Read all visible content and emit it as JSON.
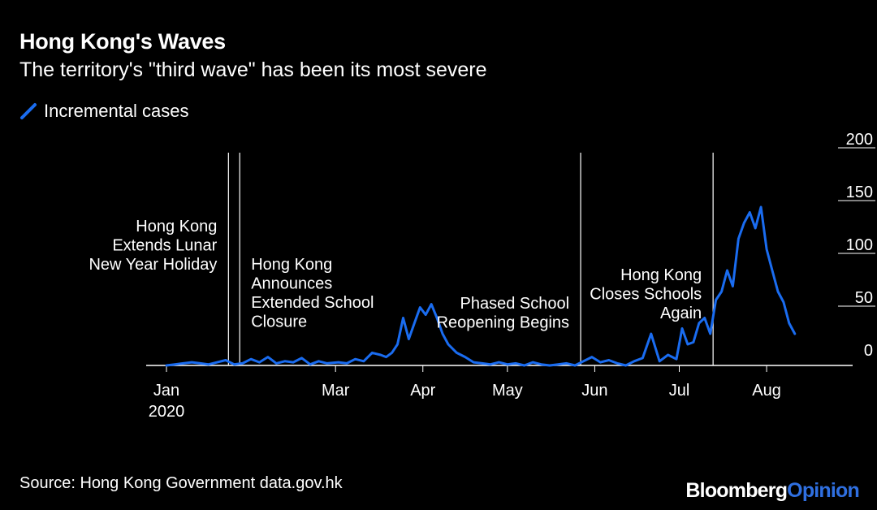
{
  "header": {
    "title": "Hong Kong's Waves",
    "subtitle": "The territory's \"third wave\" has been its most severe"
  },
  "legend": {
    "label": "Incremental cases"
  },
  "footer": {
    "source": "Source: Hong Kong Government data.gov.hk",
    "brand_part1": "Bloomberg",
    "brand_part2": "Opinion"
  },
  "colors": {
    "series": "#1a6cf0",
    "background": "#000000",
    "text": "#ffffff",
    "brand_accent": "#2f6fe0"
  },
  "chart_data": {
    "type": "line",
    "title": "Hong Kong's Waves",
    "subtitle": "The territory's \"third wave\" has been its most severe",
    "x_start_label": "Jan 2020",
    "x_tick_labels": [
      {
        "date": "2020-01-01",
        "label": "Jan",
        "sub": "2020"
      },
      {
        "date": "2020-03-01",
        "label": "Mar"
      },
      {
        "date": "2020-04-01",
        "label": "Apr"
      },
      {
        "date": "2020-05-01",
        "label": "May"
      },
      {
        "date": "2020-06-01",
        "label": "Jun"
      },
      {
        "date": "2020-07-01",
        "label": "Jul"
      },
      {
        "date": "2020-08-01",
        "label": "Aug"
      }
    ],
    "y_ticks": [
      0,
      50,
      100,
      150,
      200
    ],
    "ylim": [
      0,
      200
    ],
    "y_axis_side": "right",
    "series": [
      {
        "name": "Incremental cases",
        "color": "#1a6cf0",
        "x": [
          "2020-01-01",
          "2020-01-04",
          "2020-01-07",
          "2020-01-10",
          "2020-01-13",
          "2020-01-16",
          "2020-01-19",
          "2020-01-22",
          "2020-01-25",
          "2020-01-28",
          "2020-01-31",
          "2020-02-03",
          "2020-02-06",
          "2020-02-09",
          "2020-02-12",
          "2020-02-15",
          "2020-02-18",
          "2020-02-21",
          "2020-02-24",
          "2020-02-27",
          "2020-03-02",
          "2020-03-05",
          "2020-03-08",
          "2020-03-11",
          "2020-03-14",
          "2020-03-17",
          "2020-03-19",
          "2020-03-21",
          "2020-03-23",
          "2020-03-25",
          "2020-03-27",
          "2020-03-29",
          "2020-03-31",
          "2020-04-02",
          "2020-04-04",
          "2020-04-06",
          "2020-04-08",
          "2020-04-10",
          "2020-04-13",
          "2020-04-16",
          "2020-04-19",
          "2020-04-22",
          "2020-04-25",
          "2020-04-28",
          "2020-05-01",
          "2020-05-04",
          "2020-05-07",
          "2020-05-10",
          "2020-05-13",
          "2020-05-16",
          "2020-05-19",
          "2020-05-22",
          "2020-05-25",
          "2020-05-28",
          "2020-05-31",
          "2020-06-03",
          "2020-06-06",
          "2020-06-09",
          "2020-06-12",
          "2020-06-15",
          "2020-06-18",
          "2020-06-21",
          "2020-06-24",
          "2020-06-27",
          "2020-06-30",
          "2020-07-02",
          "2020-07-04",
          "2020-07-06",
          "2020-07-08",
          "2020-07-10",
          "2020-07-12",
          "2020-07-14",
          "2020-07-16",
          "2020-07-18",
          "2020-07-20",
          "2020-07-22",
          "2020-07-24",
          "2020-07-26",
          "2020-07-28",
          "2020-07-30",
          "2020-08-01",
          "2020-08-03",
          "2020-08-05",
          "2020-08-07",
          "2020-08-09",
          "2020-08-11"
        ],
        "values": [
          0,
          1,
          2,
          3,
          2,
          1,
          3,
          5,
          1,
          2,
          6,
          3,
          8,
          2,
          4,
          3,
          7,
          1,
          4,
          2,
          3,
          2,
          6,
          4,
          12,
          10,
          8,
          12,
          20,
          45,
          25,
          40,
          55,
          48,
          58,
          45,
          30,
          20,
          12,
          8,
          3,
          2,
          1,
          3,
          1,
          2,
          0,
          3,
          1,
          0,
          1,
          2,
          0,
          4,
          8,
          3,
          5,
          2,
          0,
          4,
          7,
          30,
          4,
          10,
          6,
          35,
          20,
          22,
          40,
          45,
          30,
          62,
          70,
          90,
          75,
          120,
          135,
          145,
          130,
          150,
          110,
          90,
          70,
          60,
          40,
          30
        ]
      }
    ],
    "annotations": [
      {
        "date": "2020-01-23",
        "text": [
          "Hong Kong",
          "Extends Lunar",
          "New Year Holiday"
        ],
        "align": "left-of-line"
      },
      {
        "date": "2020-01-27",
        "text": [
          "Hong Kong",
          "Announces",
          "Extended School",
          "Closure"
        ],
        "align": "right-of-line"
      },
      {
        "date": "2020-05-27",
        "text": [
          "Phased School",
          "Reopening Begins"
        ],
        "align": "left-of-line"
      },
      {
        "date": "2020-07-13",
        "text": [
          "Hong Kong",
          "Closes Schools",
          "Again"
        ],
        "align": "left-of-line"
      }
    ],
    "grid": false,
    "legend_position": "top-left"
  }
}
